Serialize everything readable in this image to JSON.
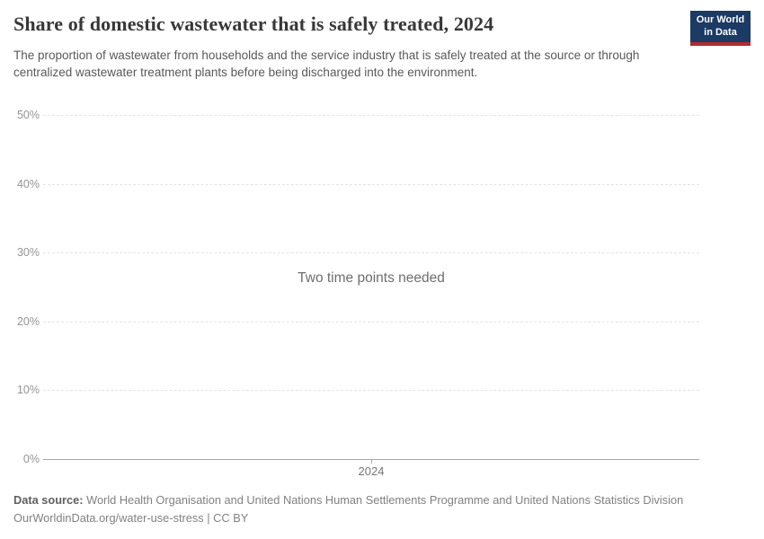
{
  "header": {
    "title": "Share of domestic wastewater that is safely treated, 2024",
    "subtitle": "The proportion of wastewater from households and the service industry that is safely treated at the source or through centralized wastewater treatment plants before being discharged into the environment."
  },
  "logo": {
    "line1": "Our World",
    "line2": "in Data",
    "bg_color": "#1b3a64",
    "accent_color": "#b52a2e"
  },
  "chart_data": {
    "type": "line",
    "title": "Share of domestic wastewater that is safely treated, 2024",
    "series": [],
    "empty_message": "Two time points needed",
    "x_ticks": [
      {
        "value": 2024,
        "label": "2024",
        "position": 0.5
      }
    ],
    "y_ticks": [
      0,
      10,
      20,
      30,
      40,
      50
    ],
    "y_tick_suffix": "%",
    "ylim": [
      0,
      50
    ],
    "grid": true,
    "grid_style": "dashed",
    "colors": {
      "gridline": "#e4e4e4",
      "axis_line": "#a7a7a7",
      "tick_label": "#949494"
    }
  },
  "footer": {
    "data_source_label": "Data source:",
    "data_source_text": "World Health Organisation and United Nations Human Settlements Programme and United Nations Statistics Division",
    "link": "OurWorldinData.org/water-use-stress",
    "separator": "|",
    "license": "CC BY"
  }
}
